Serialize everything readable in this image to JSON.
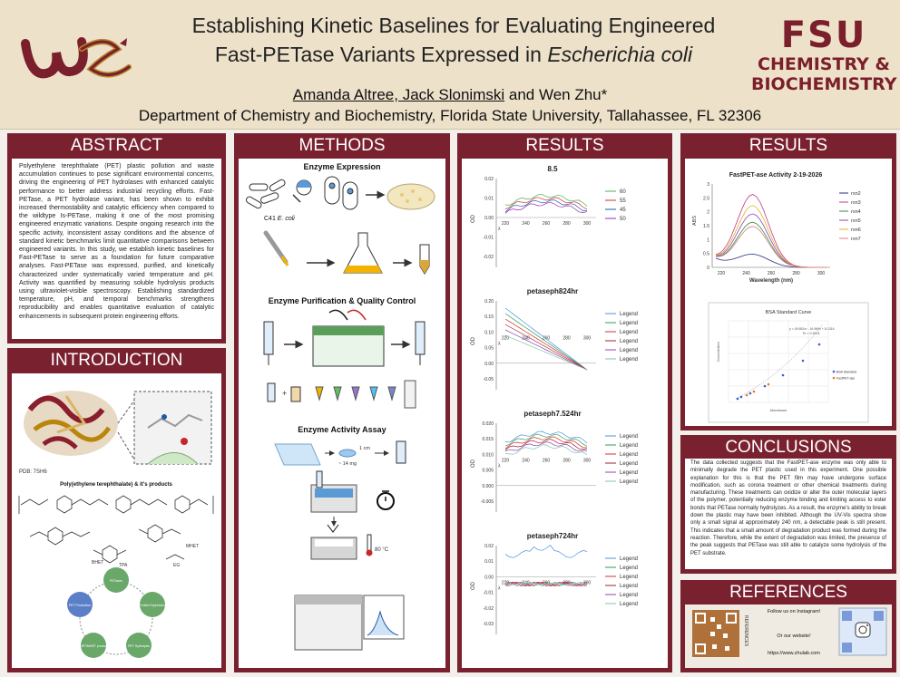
{
  "header": {
    "title_line1": "Establishing Kinetic Baselines for Evaluating Engineered",
    "title_line2_pre": "Fast-PETase Variants Expressed in ",
    "title_line2_italic": "Escherichia coli",
    "authors_underlined": "Amanda Altree, Jack Slonimski",
    "authors_rest": " and Wen Zhu*",
    "department": "Department of Chemistry and Biochemistry, Florida State University, Tallahassee, FL 32306",
    "fsu_logo_big": "FSU",
    "fsu_logo_line1": "CHEMISTRY &",
    "fsu_logo_line2": "BIOCHEMISTRY"
  },
  "abstract": {
    "heading": "ABSTRACT",
    "text": "Polyethylene terephthalate (PET) plastic pollution and waste accumulation continues to pose significant environmental concerns, driving the engineering of PET hydrolases with enhanced catalytic performance to better address industrial recycling efforts. Fast-PETase, a PET hydrolase variant, has been shown to exhibit increased thermostability and catalytic efficiency when compared to the wildtype Is-PETase, making it one of the most promising engineered enzymatic variations. Despite ongoing research into the specific activity, inconsistent assay conditions and the absence of standard kinetic benchmarks limit quantitative comparisons between engineered variants. In this study, we establish kinetic baselines for Fast-PETase to serve as a foundation for future comparative analyses. Fast-PETase was expressed, purified, and kinetically characterized under systematically varied temperature and pH. Activity was quantified by measuring soluble hydrolysis products using ultraviolet-visible spectroscopy. Establishing standardized temperature, pH, and temporal benchmarks strengthens reproducibility and enables quantitative evaluation of catalytic enhancements in subsequent protein engineering efforts."
  },
  "introduction": {
    "heading": "INTRODUCTION",
    "pdb_label": "PDB: 7SH6",
    "products_title": "Poly(ethylene terephthalate) & it's products",
    "chem_labels": [
      "BHET",
      "MHET",
      "TPA",
      "EG"
    ],
    "cycle_nodes": [
      "PETases",
      "Protein Expression",
      "PET Hydrolysis",
      "BHET/MHET products",
      "PET Production"
    ]
  },
  "methods": {
    "heading": "METHODS",
    "s1_title": "Enzyme Expression",
    "s1_label_strain": "C41",
    "s1_label_species": "E. coli",
    "s2_title": "Enzyme Purification & Quality Control",
    "s3_title": "Enzyme Activity Assay",
    "s3_label_size": "1 cm",
    "s3_label_mass": "~ 14 mg",
    "s3_label_temp": "80 °C"
  },
  "results_left": {
    "heading": "RESULTS",
    "charts": [
      {
        "title": "8.5",
        "yticks": [
          "0.02",
          "0.01",
          "0.00",
          "-0.01",
          "-0.02"
        ],
        "xticks": [
          "220",
          "240",
          "260",
          "280",
          "300"
        ],
        "ylabel": "OD",
        "xlabel": "λ",
        "legend": [
          "60",
          "55",
          "45",
          "50"
        ],
        "colors": [
          "#4caf50",
          "#d32f2f",
          "#1e5aa8",
          "#9c27b0"
        ]
      },
      {
        "title": "petaseph824hr",
        "yticks": [
          "0.20",
          "0.15",
          "0.10",
          "0.05",
          "0.00",
          "-0.05"
        ],
        "xticks": [
          "220",
          "240",
          "260",
          "280",
          "300"
        ],
        "ylabel": "OD",
        "xlabel": "λ",
        "legend": [
          "Legend",
          "Legend",
          "Legend",
          "Legend",
          "Legend",
          "Legend"
        ],
        "colors": [
          "#4a90e2",
          "#2e9e5b",
          "#d32f2f",
          "#a0202e",
          "#8e44ad",
          "#7fc6a4"
        ]
      },
      {
        "title": "petaseph7.524hr",
        "yticks": [
          "0.020",
          "0.015",
          "0.010",
          "0.005",
          "0.000",
          "-0.005"
        ],
        "xticks": [
          "220",
          "240",
          "260",
          "280",
          "300"
        ],
        "ylabel": "OD",
        "xlabel": "λ",
        "legend": [
          "Legend",
          "Legend",
          "Legend",
          "Legend",
          "Legend",
          "Legend"
        ],
        "colors": [
          "#4a90e2",
          "#2e9e5b",
          "#d32f2f",
          "#a0202e",
          "#8e44ad",
          "#7fc6a4"
        ]
      },
      {
        "title": "petaseph724hr",
        "yticks": [
          "0.02",
          "0.01",
          "0.00",
          "-0.01",
          "-0.02",
          "-0.03"
        ],
        "xticks": [
          "220",
          "240",
          "260",
          "280",
          "300"
        ],
        "ylabel": "OD",
        "xlabel": "λ",
        "legend": [
          "Legend",
          "Legend",
          "Legend",
          "Legend",
          "Legend",
          "Legend"
        ],
        "colors": [
          "#4a90e2",
          "#2e9e5b",
          "#d32f2f",
          "#a0202e",
          "#8e44ad",
          "#7fc6a4"
        ]
      }
    ]
  },
  "results_right": {
    "heading": "RESULTS",
    "activity_chart": {
      "title": "FastPET-ase Activity 2-19-2026",
      "ylabel": "ABS",
      "xlabel": "Wavelength (nm)",
      "xticks": [
        "220",
        "240",
        "260",
        "280",
        "300"
      ],
      "yticks": [
        "3",
        "2.5",
        "2",
        "1.5",
        "1",
        "0.5",
        "0"
      ],
      "legend": [
        "rxn2",
        "rxn3",
        "rxn4",
        "rxn5",
        "rxn6",
        "rxn7"
      ],
      "colors": [
        "#2b2b7a",
        "#c43a7a",
        "#2e8b3e",
        "#8e44ad",
        "#e0b12a",
        "#e07a8a"
      ]
    },
    "bsa_chart": {
      "title": "BSA Standard Curve",
      "equation": "y = 49.652x² - 16.969x + 8.1316",
      "r2": "R² = 0.9924",
      "xlabel": "Absorbance",
      "ylabel": "Concentration",
      "legend": [
        "BSA Standard",
        "FastPET-ase"
      ]
    }
  },
  "conclusions": {
    "heading": "CONCLUSIONS",
    "text": "The data collected suggests that the FastPET-ase enzyme was only able to minimally degrade the PET plastic used in this experiment. One possible explanation for this is that the PET film may have undergone surface modification, such as corona treatment or other chemical treatments during manufacturing. These treatments can oxidize or alter the outer molecular layers of the polymer, potentially reducing enzyme binding and limiting access to ester bonds that PETase normally hydrolyzes. As a result, the enzyme's ability to break down the plastic may have been inhibited. Although the UV-Vis spectra show only a small signal at approximately 240 nm, a detectable peak is still present. This indicates that a small amount of degradation product was formed during the reaction. Therefore, while the extent of degradation was limited, the presence of the peak suggests that PETase was still able to catalyze some hydrolysis of the PET substrate."
  },
  "references": {
    "heading": "REFERENCES",
    "qr_side_label": "REFERENCES",
    "instagram": "Follow us on Instagram!",
    "website_label": "Or our website!",
    "website_url": "https://www.zhulab.com"
  }
}
